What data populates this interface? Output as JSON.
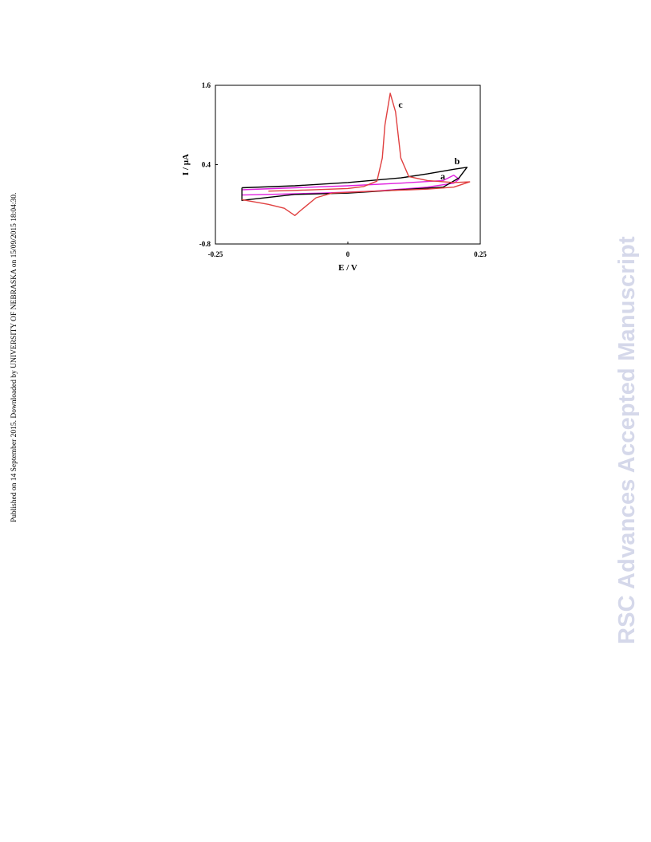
{
  "side_note": "Published on 14 September 2015. Downloaded by UNIVERSITY OF NEBRASKA on 15/09/2015 18:04:30.",
  "watermark": {
    "text": "RSC Advances Accepted Manuscript",
    "color": "#d5d8ea"
  },
  "chart_data": {
    "type": "line",
    "xlabel": "E / V",
    "ylabel": "I / µA",
    "xlim": [
      -0.25,
      0.25
    ],
    "ylim": [
      -0.8,
      1.6
    ],
    "x_ticks": [
      "-0.25",
      "0",
      "0.25"
    ],
    "y_ticks": [
      "1.6",
      "0.4",
      "-0.8"
    ],
    "grid": false,
    "series": [
      {
        "name": "a",
        "color": "#e020e0",
        "points": [
          [
            -0.2,
            0.02
          ],
          [
            -0.1,
            0.05
          ],
          [
            0.0,
            0.08
          ],
          [
            0.1,
            0.12
          ],
          [
            0.18,
            0.16
          ],
          [
            0.2,
            0.24
          ],
          [
            0.21,
            0.18
          ],
          [
            0.2,
            0.12
          ],
          [
            0.15,
            0.06
          ],
          [
            0.05,
            0.0
          ],
          [
            -0.05,
            -0.03
          ],
          [
            -0.15,
            -0.05
          ],
          [
            -0.2,
            -0.06
          ],
          [
            -0.2,
            0.02
          ]
        ]
      },
      {
        "name": "b",
        "color": "#000000",
        "points": [
          [
            -0.2,
            0.05
          ],
          [
            -0.1,
            0.08
          ],
          [
            0.0,
            0.13
          ],
          [
            0.1,
            0.2
          ],
          [
            0.15,
            0.26
          ],
          [
            0.2,
            0.33
          ],
          [
            0.225,
            0.36
          ],
          [
            0.21,
            0.2
          ],
          [
            0.18,
            0.06
          ],
          [
            0.1,
            0.02
          ],
          [
            0.0,
            -0.03
          ],
          [
            -0.1,
            -0.05
          ],
          [
            -0.2,
            -0.14
          ],
          [
            -0.2,
            0.05
          ]
        ]
      },
      {
        "name": "c",
        "color": "#e04040",
        "points": [
          [
            -0.15,
            0.0
          ],
          [
            -0.1,
            0.01
          ],
          [
            0.0,
            0.04
          ],
          [
            0.03,
            0.07
          ],
          [
            0.055,
            0.15
          ],
          [
            0.065,
            0.5
          ],
          [
            0.07,
            1.0
          ],
          [
            0.08,
            1.48
          ],
          [
            0.09,
            1.2
          ],
          [
            0.1,
            0.5
          ],
          [
            0.115,
            0.22
          ],
          [
            0.15,
            0.16
          ],
          [
            0.2,
            0.13
          ],
          [
            0.23,
            0.14
          ],
          [
            0.2,
            0.06
          ],
          [
            0.15,
            0.03
          ],
          [
            0.05,
            0.0
          ],
          [
            -0.03,
            -0.03
          ],
          [
            -0.06,
            -0.1
          ],
          [
            -0.09,
            -0.3
          ],
          [
            -0.1,
            -0.37
          ],
          [
            -0.12,
            -0.26
          ],
          [
            -0.15,
            -0.2
          ],
          [
            -0.2,
            -0.13
          ]
        ]
      }
    ]
  }
}
